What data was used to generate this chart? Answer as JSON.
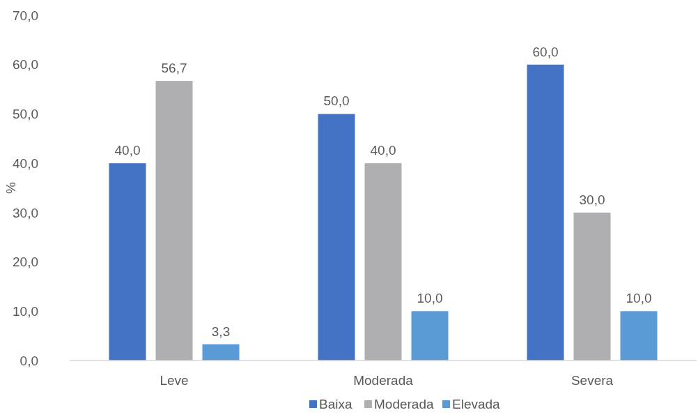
{
  "chart_data": {
    "type": "bar",
    "ylabel": "%",
    "categories": [
      "Leve",
      "Moderada",
      "Severa"
    ],
    "series": [
      {
        "name": "Baixa",
        "color": "#4472c4",
        "values": [
          40.0,
          50.0,
          60.0
        ],
        "value_labels": [
          "40,0",
          "50,0",
          "60,0"
        ]
      },
      {
        "name": "Moderada",
        "color": "#afafb2",
        "values": [
          56.7,
          40.0,
          30.0
        ],
        "value_labels": [
          "56,7",
          "40,0",
          "30,0"
        ]
      },
      {
        "name": "Elevada",
        "color": "#5b9bd5",
        "values": [
          3.3,
          10.0,
          10.0
        ],
        "value_labels": [
          "3,3",
          "10,0",
          "10,0"
        ]
      }
    ],
    "ylim": [
      0,
      70
    ],
    "yticks": [
      {
        "value": 0,
        "label": "0,0"
      },
      {
        "value": 10,
        "label": "10,0"
      },
      {
        "value": 20,
        "label": "20,0"
      },
      {
        "value": 30,
        "label": "30,0"
      },
      {
        "value": 40,
        "label": "40,0"
      },
      {
        "value": 50,
        "label": "50,0"
      },
      {
        "value": 60,
        "label": "60,0"
      },
      {
        "value": 70,
        "label": "70,0"
      }
    ],
    "grid": false,
    "legend": "bottom"
  }
}
